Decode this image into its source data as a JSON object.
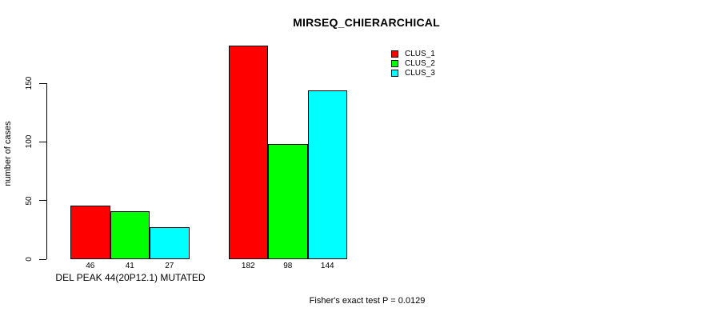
{
  "chart_data": {
    "type": "bar",
    "title": "MIRSEQ_CHIERARCHICAL",
    "ylabel": "number of cases",
    "ylim": [
      0,
      182
    ],
    "yticks": [
      0,
      50,
      100,
      150
    ],
    "grid": false,
    "legend_position": "top-right",
    "series": [
      {
        "name": "CLUS_1",
        "color": "#FF0000"
      },
      {
        "name": "CLUS_2",
        "color": "#00FF00"
      },
      {
        "name": "CLUS_3",
        "color": "#00FFFF"
      }
    ],
    "groups": [
      {
        "label": "DEL PEAK 44(20P12.1) MUTATED",
        "values": [
          46,
          41,
          27
        ]
      },
      {
        "label": "",
        "values": [
          182,
          98,
          144
        ]
      }
    ],
    "annotation": "Fisher's exact test P = 0.0129"
  }
}
